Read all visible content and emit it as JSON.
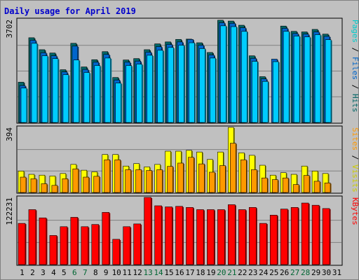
{
  "chart_data": {
    "type": "bar",
    "title": "Daily usage for April 2019",
    "x_labels": [
      "1",
      "2",
      "3",
      "4",
      "5",
      "6",
      "7",
      "8",
      "9",
      "10",
      "11",
      "12",
      "13",
      "14",
      "15",
      "16",
      "17",
      "18",
      "19",
      "20",
      "21",
      "22",
      "23",
      "24",
      "25",
      "26",
      "27",
      "28",
      "29",
      "30",
      "31"
    ],
    "weekend_days": [
      6,
      7,
      13,
      14,
      20,
      21,
      27,
      28
    ],
    "colors": {
      "pages": "#00ccff",
      "files": "#0066cc",
      "hits": "#006666",
      "visits": "#ffff00",
      "sites": "#ff9900",
      "kbytes": "#ff0000",
      "weekday_label": "#000000",
      "weekend_label": "#006633"
    },
    "panels": [
      {
        "id": "hits_files_pages",
        "ymax_label": "3702",
        "ymax": 3702,
        "legend": [
          {
            "text": "Pages",
            "color": "#00cccc"
          },
          {
            "text": " / ",
            "color": "#000000"
          },
          {
            "text": "Files",
            "color": "#0066cc"
          },
          {
            "text": " / ",
            "color": "#000000"
          },
          {
            "text": "Hits",
            "color": "#006666"
          }
        ],
        "series": [
          {
            "name": "Hits",
            "color": "#006666",
            "values": [
              1450,
              3050,
              2620,
              2500,
              1900,
              2850,
              2000,
              2260,
              2550,
              1620,
              2250,
              2300,
              2620,
              2830,
              2900,
              2990,
              3000,
              2870,
              2520,
              3680,
              3650,
              3500,
              2400,
              1650,
              0,
              3470,
              3280,
              3260,
              3350,
              3180,
              0
            ]
          },
          {
            "name": "Files",
            "color": "#0066cc",
            "values": [
              1380,
              3010,
              2560,
              2450,
              1870,
              2800,
              1960,
              2220,
              2500,
              1580,
              2220,
              2260,
              2580,
              2780,
              2860,
              2950,
              3040,
              2830,
              2480,
              3640,
              3620,
              3460,
              2360,
              1620,
              2330,
              3440,
              3250,
              3230,
              3310,
              3150,
              0
            ]
          },
          {
            "name": "Pages",
            "color": "#00ccff",
            "values": [
              1340,
              2950,
              2500,
              2400,
              1820,
              2350,
              1900,
              2150,
              2420,
              1520,
              2150,
              2200,
              2520,
              2700,
              2800,
              2880,
              2970,
              2760,
              2420,
              3580,
              3550,
              3380,
              2300,
              1580,
              2290,
              3380,
              3210,
              3180,
              3260,
              3080,
              0
            ]
          }
        ]
      },
      {
        "id": "visits_sites",
        "ymax_label": "394",
        "ymax": 394,
        "legend": [
          {
            "text": "Sites",
            "color": "#ff9900"
          },
          {
            "text": " / ",
            "color": "#000000"
          },
          {
            "text": "Visits",
            "color": "#cccc00"
          }
        ],
        "series": [
          {
            "name": "Visits",
            "color": "#ffff00",
            "values": [
              130,
              110,
              105,
              100,
              115,
              170,
              135,
              125,
              230,
              230,
              160,
              175,
              155,
              170,
              250,
              250,
              255,
              245,
              200,
              245,
              394,
              240,
              225,
              165,
              105,
              120,
              110,
              160,
              130,
              115,
              0
            ]
          },
          {
            "name": "Sites",
            "color": "#ff9900",
            "values": [
              110,
              100,
              70,
              60,
              100,
              160,
              110,
              115,
              215,
              215,
              155,
              155,
              150,
              155,
              175,
              195,
              230,
              190,
              140,
              180,
              315,
              215,
              155,
              105,
              95,
              105,
              65,
              120,
              85,
              75,
              0
            ]
          }
        ]
      },
      {
        "id": "kbytes",
        "ymax_label": "122231",
        "ymax": 122231,
        "legend": [
          {
            "text": "KBytes",
            "color": "#ff0000"
          }
        ],
        "series": [
          {
            "name": "KBytes",
            "color": "#ff0000",
            "values": [
              75000,
              100000,
              85000,
              53000,
              69000,
              86000,
              69000,
              73000,
              95000,
              46000,
              69000,
              74000,
              122231,
              107000,
              105000,
              106000,
              104000,
              100000,
              100000,
              100000,
              109000,
              100000,
              104000,
              75000,
              90000,
              101000,
              104000,
              112000,
              108000,
              102000,
              0
            ]
          }
        ]
      }
    ]
  }
}
